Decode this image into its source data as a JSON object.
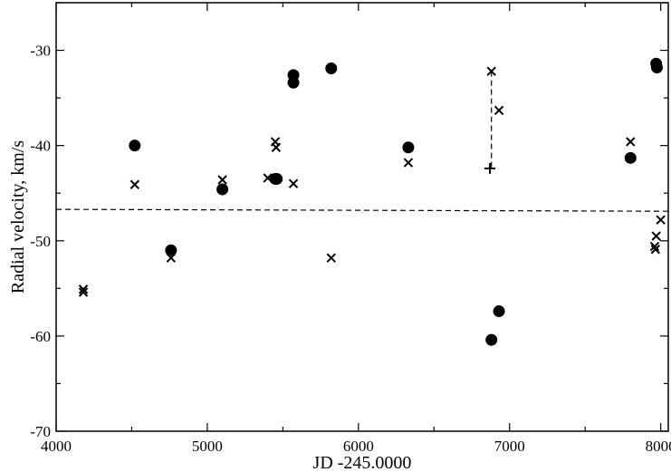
{
  "chart_data": {
    "type": "scatter",
    "title": "",
    "xlabel": "JD -245.0000",
    "ylabel": "Radial velocity, km/s",
    "xlim": [
      4000,
      8050
    ],
    "ylim": [
      -70,
      -25
    ],
    "x_ticks": [
      4000,
      5000,
      6000,
      7000,
      8000
    ],
    "y_ticks": [
      -70,
      -60,
      -50,
      -40,
      -30
    ],
    "grid": false,
    "legend": "none",
    "series": [
      {
        "marker": "filled-circle",
        "points": [
          [
            4520,
            -40.0
          ],
          [
            4760,
            -51.0
          ],
          [
            5100,
            -44.6
          ],
          [
            5450,
            -43.5
          ],
          [
            5460,
            -43.5
          ],
          [
            5570,
            -32.6
          ],
          [
            5570,
            -33.4
          ],
          [
            5820,
            -31.9
          ],
          [
            6330,
            -40.2
          ],
          [
            6880,
            -60.4
          ],
          [
            6930,
            -57.4
          ],
          [
            7800,
            -41.3
          ],
          [
            7970,
            -31.4
          ],
          [
            7975,
            -31.8
          ]
        ]
      },
      {
        "marker": "cross-x",
        "points": [
          [
            4180,
            -55.1
          ],
          [
            4180,
            -55.4
          ],
          [
            4520,
            -44.1
          ],
          [
            4760,
            -51.8
          ],
          [
            5100,
            -43.6
          ],
          [
            5400,
            -43.4
          ],
          [
            5450,
            -39.6
          ],
          [
            5455,
            -40.2
          ],
          [
            5570,
            -44.0
          ],
          [
            5820,
            -51.8
          ],
          [
            6330,
            -41.8
          ],
          [
            6880,
            -32.2
          ],
          [
            6930,
            -36.3
          ],
          [
            7800,
            -39.6
          ],
          [
            7970,
            -49.5
          ],
          [
            7960,
            -50.6
          ],
          [
            7965,
            -50.9
          ],
          [
            8000,
            -47.8
          ]
        ]
      },
      {
        "marker": "plus",
        "points": [
          [
            6870,
            -42.4
          ]
        ]
      }
    ],
    "reference_lines": [
      {
        "style": "dashed",
        "points": [
          [
            4000,
            -46.7
          ],
          [
            8050,
            -46.9
          ]
        ]
      },
      {
        "style": "dashed",
        "points": [
          [
            6880,
            -32.2
          ],
          [
            6880,
            -42.4
          ]
        ]
      }
    ]
  }
}
